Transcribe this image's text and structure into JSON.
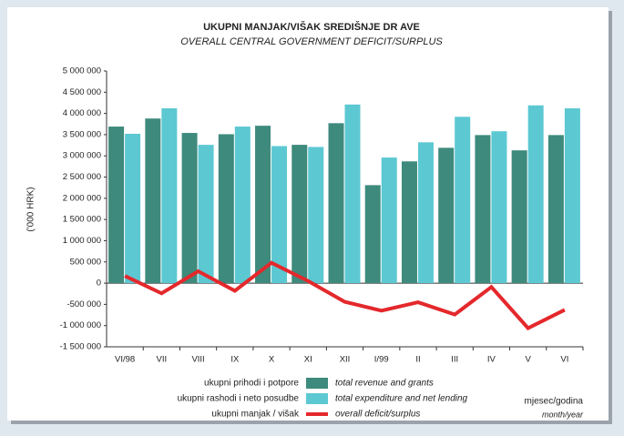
{
  "chart_data": {
    "type": "bar_line",
    "title": "UKUPNI MANJAK/VIŠAK SREDIŠNJE DR AVE",
    "subtitle": "OVERALL CENTRAL GOVERNMENT DEFICIT/SURPLUS",
    "ylabel": "('000 HRK)",
    "xlabel": "mjesec/godina",
    "xlabel_en": "month/year",
    "categories": [
      "VI/98",
      "VII",
      "VIII",
      "IX",
      "X",
      "XI",
      "XII",
      "I/99",
      "II",
      "III",
      "IV",
      "V",
      "VI"
    ],
    "series": [
      {
        "name": "ukupni prihodi i potpore",
        "name_en": "total revenue and grants",
        "type": "bar",
        "color": "#3e8a7c",
        "values": [
          3690000,
          3880000,
          3540000,
          3510000,
          3710000,
          3260000,
          3770000,
          2310000,
          2870000,
          3190000,
          3490000,
          3130000,
          3490000
        ]
      },
      {
        "name": "ukupni rashodi i neto posudbe",
        "name_en": "total expenditure and net lending",
        "type": "bar",
        "color": "#5cc8d2",
        "values": [
          3520000,
          4120000,
          3260000,
          3690000,
          3230000,
          3210000,
          4210000,
          2960000,
          3320000,
          3920000,
          3580000,
          4190000,
          4120000
        ]
      },
      {
        "name": "ukupni manjak / višak",
        "name_en": "overall deficit/surplus",
        "type": "line",
        "color": "#e4282c",
        "values": [
          170000,
          -240000,
          280000,
          -180000,
          480000,
          50000,
          -440000,
          -650000,
          -450000,
          -740000,
          -90000,
          -1060000,
          -630000
        ]
      }
    ],
    "ylim": [
      -1500000,
      5000000
    ],
    "yticks": [
      {
        "value": -1500000,
        "label": "-1 500 000"
      },
      {
        "value": -1000000,
        "label": "-1 000 000"
      },
      {
        "value": -500000,
        "label": "-500 000"
      },
      0,
      {
        "value": 500000,
        "label": "500 000"
      },
      {
        "value": 1000000,
        "label": "1 000 000"
      },
      {
        "value": 1500000,
        "label": "1 500 000"
      },
      {
        "value": 2000000,
        "label": "2 000 000"
      },
      {
        "value": 2500000,
        "label": "2 500 000"
      },
      {
        "value": 3000000,
        "label": "3 000 000"
      },
      {
        "value": 3500000,
        "label": "3 500 000"
      },
      {
        "value": 4000000,
        "label": "4 000 000"
      },
      {
        "value": 4500000,
        "label": "4 500 000"
      },
      {
        "value": 5000000,
        "label": "5 000 000"
      }
    ]
  }
}
